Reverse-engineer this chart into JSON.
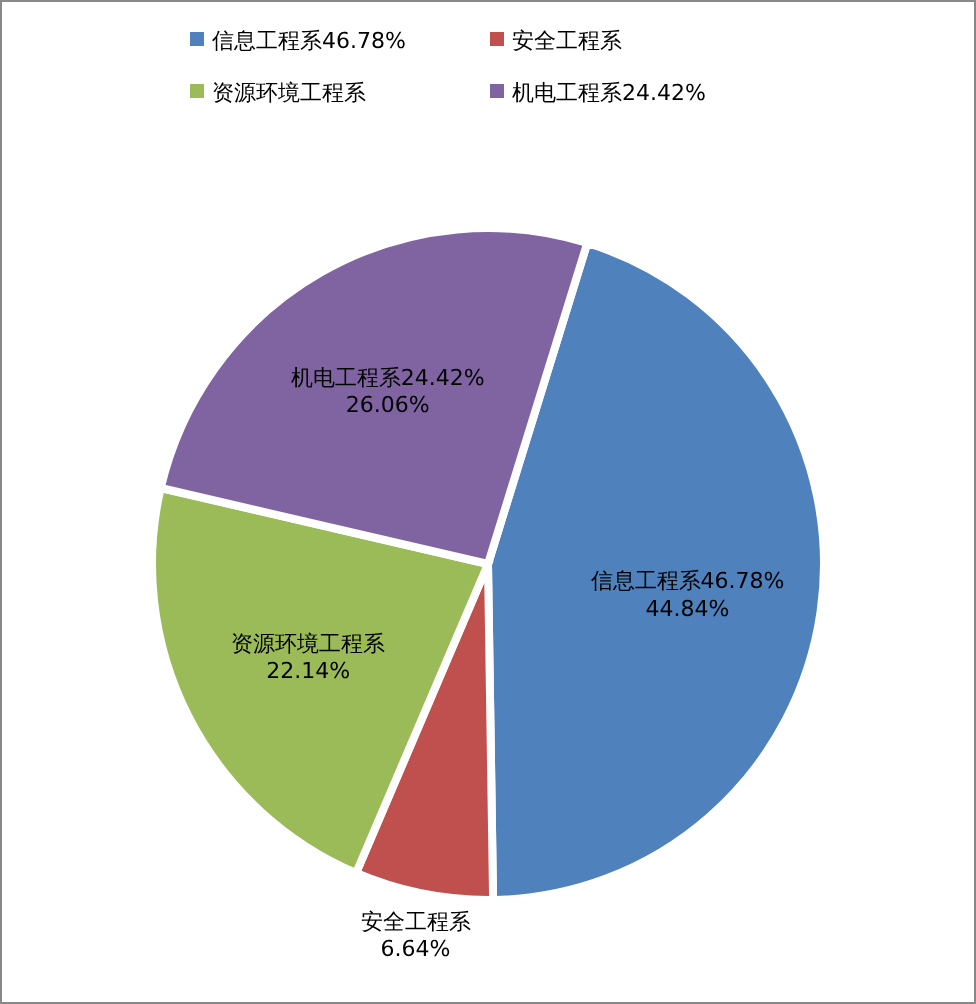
{
  "chart_data": {
    "type": "pie",
    "categories": [
      "信息工程系46.78%",
      "安全工程系",
      "资源环境工程系",
      "机电工程系24.42%"
    ],
    "values": [
      44.84,
      6.64,
      22.14,
      26.06
    ],
    "colors": [
      "#4f81bd",
      "#c0504d",
      "#9bbb59",
      "#8064a2"
    ],
    "value_labels": [
      "44.84%",
      "6.64%",
      "22.14%",
      "26.06%"
    ],
    "legend": "top"
  }
}
